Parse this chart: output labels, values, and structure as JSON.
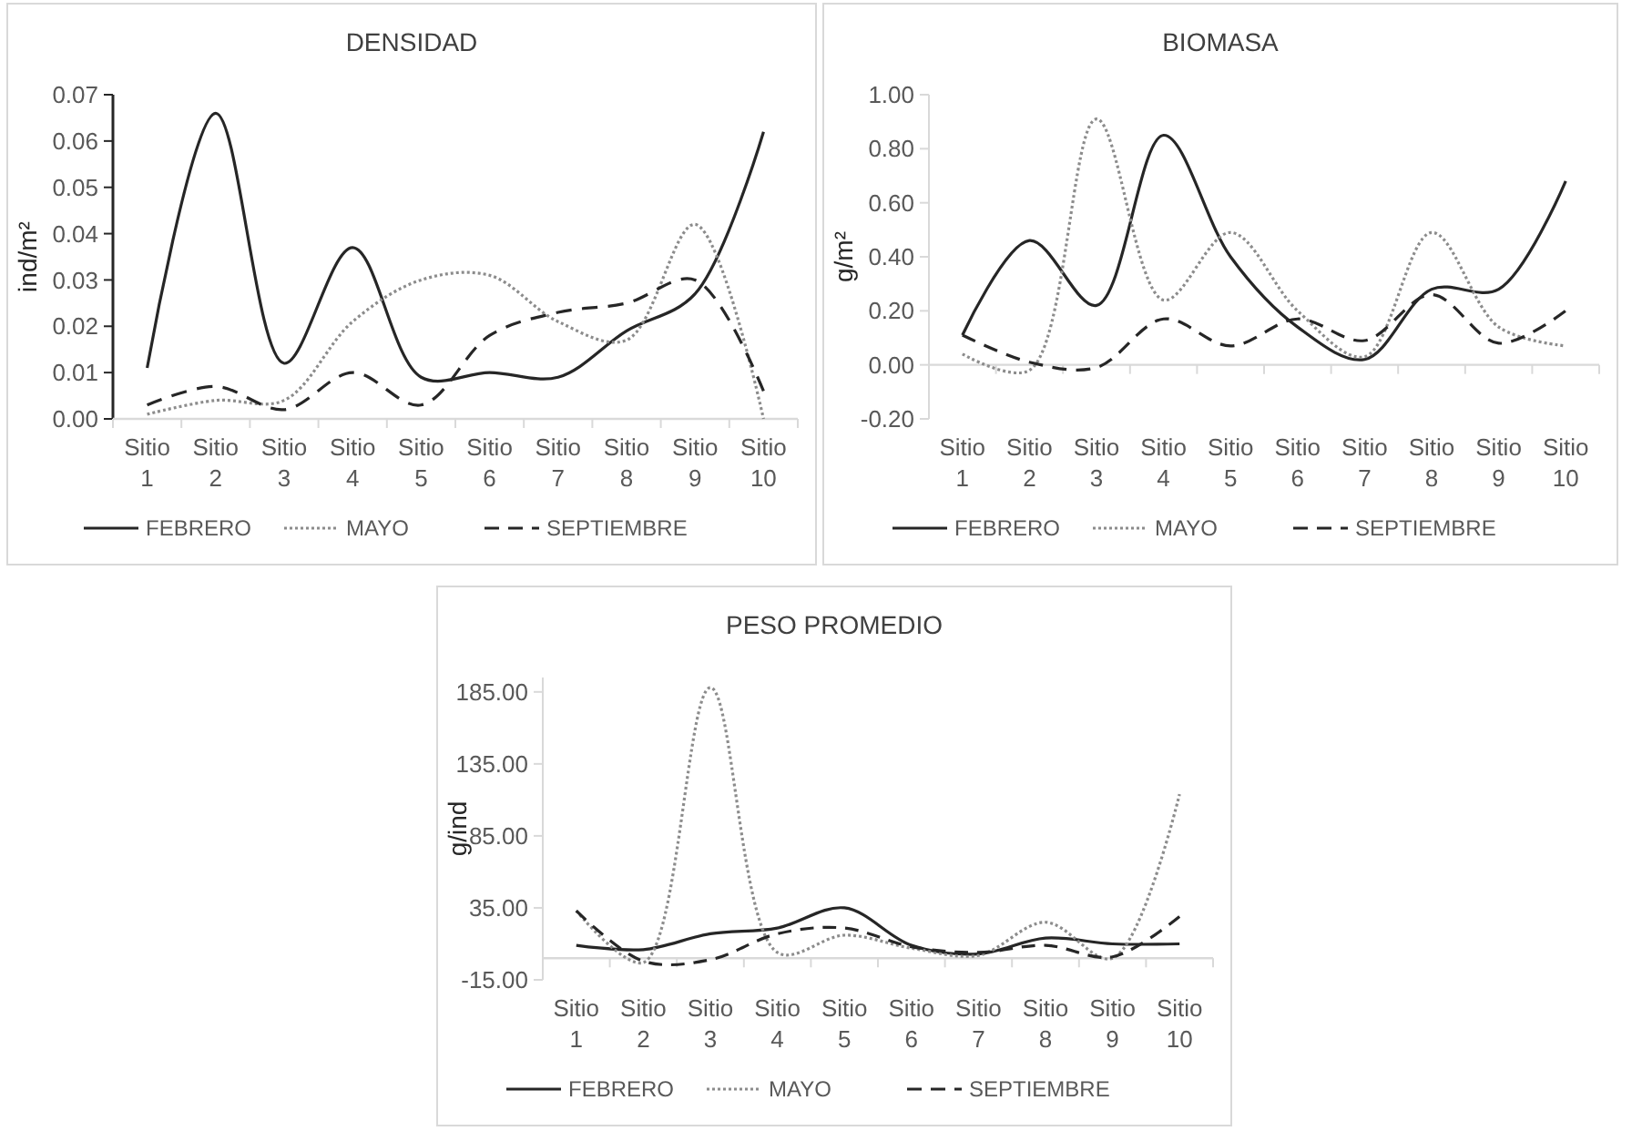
{
  "chart_data": [
    {
      "type": "line",
      "title": "DENSIDAD",
      "ylabel": "ind/m²",
      "legend": "bottom",
      "categories": [
        "Sitio 1",
        "Sitio 2",
        "Sitio 3",
        "Sitio 4",
        "Sitio 5",
        "Sitio 6",
        "Sitio 7",
        "Sitio 8",
        "Sitio 9",
        "Sitio 10"
      ],
      "ylim": [
        0,
        0.07
      ],
      "yticks": [
        {
          "value": 0,
          "label": "0.00"
        },
        0.01,
        0.02,
        0.03,
        0.04,
        0.05,
        0.06,
        0.07
      ],
      "series": [
        {
          "name": "FEBRERO",
          "color": "#262626",
          "line_style": "solid",
          "values": [
            0.011,
            0.066,
            0.012,
            0.037,
            0.009,
            0.01,
            0.009,
            0.019,
            0.027,
            0.062
          ]
        },
        {
          "name": "MAYO",
          "color": "#8c8c8c",
          "line_style": "dotted",
          "values": [
            0.001,
            0.004,
            0.004,
            0.021,
            0.03,
            0.031,
            0.021,
            0.017,
            0.042,
            0.0
          ]
        },
        {
          "name": "SEPTIEMBRE",
          "color": "#262626",
          "line_style": "dashed",
          "values": [
            0.003,
            0.007,
            0.002,
            0.01,
            0.003,
            0.018,
            0.023,
            0.025,
            0.03,
            0.006
          ]
        }
      ]
    },
    {
      "type": "line",
      "title": "BIOMASA",
      "ylabel": "g/m²",
      "legend": "bottom",
      "categories": [
        "Sitio 1",
        "Sitio 2",
        "Sitio 3",
        "Sitio 4",
        "Sitio 5",
        "Sitio 6",
        "Sitio 7",
        "Sitio 8",
        "Sitio 9",
        "Sitio 10"
      ],
      "ylim": [
        -0.2,
        1.0
      ],
      "yticks": [
        {
          "value": -0.2,
          "label": "-0.20"
        },
        {
          "value": 0,
          "label": "0.00"
        },
        {
          "value": 0.2,
          "label": "0.20"
        },
        {
          "value": 0.4,
          "label": "0.40"
        },
        {
          "value": 0.6,
          "label": "0.60"
        },
        {
          "value": 0.8,
          "label": "0.80"
        },
        {
          "value": 1.0,
          "label": "1.00"
        }
      ],
      "series": [
        {
          "name": "FEBRERO",
          "color": "#262626",
          "line_style": "solid",
          "values": [
            0.11,
            0.46,
            0.22,
            0.85,
            0.4,
            0.14,
            0.02,
            0.28,
            0.28,
            0.68
          ]
        },
        {
          "name": "MAYO",
          "color": "#8c8c8c",
          "line_style": "dotted",
          "values": [
            0.04,
            -0.02,
            0.91,
            0.24,
            0.49,
            0.2,
            0.03,
            0.49,
            0.14,
            0.07
          ]
        },
        {
          "name": "SEPTIEMBRE",
          "color": "#262626",
          "line_style": "dashed",
          "values": [
            0.11,
            0.01,
            -0.01,
            0.17,
            0.07,
            0.17,
            0.09,
            0.26,
            0.08,
            0.2
          ]
        }
      ]
    },
    {
      "type": "line",
      "title": "PESO PROMEDIO",
      "ylabel": "g/ind",
      "legend": "bottom",
      "categories": [
        "Sitio 1",
        "Sitio 2",
        "Sitio 3",
        "Sitio 4",
        "Sitio 5",
        "Sitio 6",
        "Sitio 7",
        "Sitio 8",
        "Sitio 9",
        "Sitio 10"
      ],
      "ylim": [
        -15,
        195
      ],
      "yticks": [
        {
          "value": -15,
          "label": "-15.00"
        },
        {
          "value": 35,
          "label": "35.00"
        },
        {
          "value": 85,
          "label": "85.00"
        },
        {
          "value": 135,
          "label": "135.00"
        },
        {
          "value": 185,
          "label": "185.00"
        }
      ],
      "series": [
        {
          "name": "FEBRERO",
          "color": "#262626",
          "line_style": "solid",
          "values": [
            9,
            6,
            17,
            21,
            35,
            9,
            3,
            14,
            10,
            10
          ]
        },
        {
          "name": "MAYO",
          "color": "#8c8c8c",
          "line_style": "dotted",
          "values": [
            33,
            -3,
            188,
            4,
            16,
            7,
            2,
            25,
            0,
            114
          ]
        },
        {
          "name": "SEPTIEMBRE",
          "color": "#262626",
          "line_style": "dashed",
          "values": [
            33,
            -2,
            -1,
            17,
            21,
            8,
            4,
            9,
            1,
            29
          ]
        }
      ]
    }
  ]
}
